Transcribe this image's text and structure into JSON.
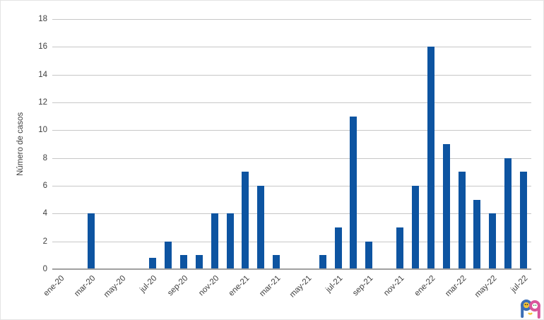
{
  "chart_data": {
    "type": "bar",
    "title": "",
    "xlabel": "",
    "ylabel": "Número de casos",
    "ylim": [
      0,
      18
    ],
    "ytick_step": 2,
    "grid": true,
    "legend": false,
    "categories": [
      "ene-20",
      "feb-20",
      "mar-20",
      "abr-20",
      "may-20",
      "jun-20",
      "jul-20",
      "ago-20",
      "sep-20",
      "oct-20",
      "nov-20",
      "dic-20",
      "ene-21",
      "feb-21",
      "mar-21",
      "abr-21",
      "may-21",
      "jun-21",
      "jul-21",
      "ago-21",
      "sep-21",
      "oct-21",
      "nov-21",
      "dic-21",
      "ene-22",
      "feb-22",
      "mar-22",
      "abr-22",
      "may-22",
      "jun-22",
      "jul-22"
    ],
    "values": [
      0,
      0,
      4,
      0,
      0,
      0,
      0.8,
      2,
      1,
      1,
      4,
      4,
      7,
      6,
      1,
      0,
      0,
      1,
      3,
      11,
      2,
      0,
      3,
      6,
      16,
      9,
      7,
      5,
      4,
      8,
      7
    ],
    "x_tick_labels": [
      "ene-20",
      "mar-20",
      "may-20",
      "jul-20",
      "sep-20",
      "nov-20",
      "ene-21",
      "mar-21",
      "may-21",
      "jul-21",
      "sep-21",
      "nov-21",
      "ene-22",
      "mar-22",
      "may-22",
      "jul-22"
    ],
    "x_tick_every": 2,
    "colors": {
      "bar": "#0d54a1",
      "gridline": "#c7c7c7",
      "axis_line": "#a0a0a0",
      "text": "#3f3f3f"
    }
  },
  "logo": {
    "name": "pap-journal-logo",
    "colors": {
      "blue": "#3b6eb5",
      "pink": "#d9569b",
      "yellow": "#f2c233",
      "green": "#3aa655",
      "eyes": "#333333"
    }
  }
}
